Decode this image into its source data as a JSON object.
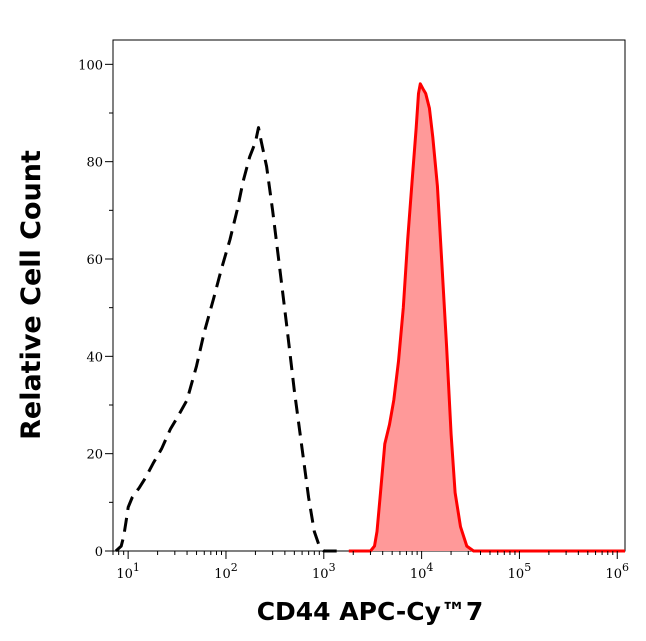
{
  "chart_data": {
    "type": "area",
    "xlabel": "CD44 APC-Cy™7",
    "ylabel": "Relative Cell Count",
    "x_scale": "log",
    "xlim": [
      7,
      1200000
    ],
    "ylim": [
      0,
      105
    ],
    "grid": false,
    "x_ticks": [
      {
        "value": 10,
        "base": "10",
        "exp": "1"
      },
      {
        "value": 100,
        "base": "10",
        "exp": "2"
      },
      {
        "value": 1000,
        "base": "10",
        "exp": "3"
      },
      {
        "value": 10000,
        "base": "10",
        "exp": "4"
      },
      {
        "value": 100000,
        "base": "10",
        "exp": "5"
      },
      {
        "value": 1000000,
        "base": "10",
        "exp": "6"
      }
    ],
    "y_ticks": [
      0,
      20,
      40,
      60,
      80,
      100
    ],
    "series": [
      {
        "style": "dashed",
        "color": "#000000",
        "fill": "none",
        "x": [
          7.5,
          8.5,
          9,
          9.5,
          10,
          11,
          13,
          15,
          18,
          22,
          27,
          33,
          40,
          50,
          60,
          75,
          90,
          110,
          130,
          150,
          175,
          200,
          215,
          230,
          260,
          300,
          350,
          420,
          500,
          600,
          700,
          800,
          900,
          1000,
          1300,
          1600
        ],
        "values": [
          0,
          1,
          3,
          6,
          9,
          11,
          13,
          15,
          18,
          21,
          25,
          28,
          31,
          38,
          45,
          52,
          58,
          64,
          70,
          76,
          81,
          84,
          87,
          84,
          79,
          70,
          59,
          46,
          33,
          21,
          11,
          4,
          1,
          0,
          0,
          0
        ]
      },
      {
        "style": "solid",
        "color": "#ff0000",
        "fill": "#ff9999",
        "x": [
          1800,
          2500,
          3000,
          3300,
          3500,
          3800,
          4200,
          4700,
          5200,
          5800,
          6500,
          7200,
          8000,
          8800,
          9300,
          9700,
          10300,
          11000,
          12000,
          13000,
          14500,
          16000,
          18000,
          20000,
          22000,
          25000,
          29000,
          34000,
          45000,
          1200000
        ],
        "values": [
          0,
          0,
          0,
          1,
          4,
          12,
          22,
          26,
          31,
          39,
          50,
          64,
          76,
          87,
          94,
          96,
          95,
          94,
          91,
          85,
          75,
          60,
          42,
          24,
          12,
          5,
          1,
          0,
          0,
          0
        ]
      }
    ]
  }
}
